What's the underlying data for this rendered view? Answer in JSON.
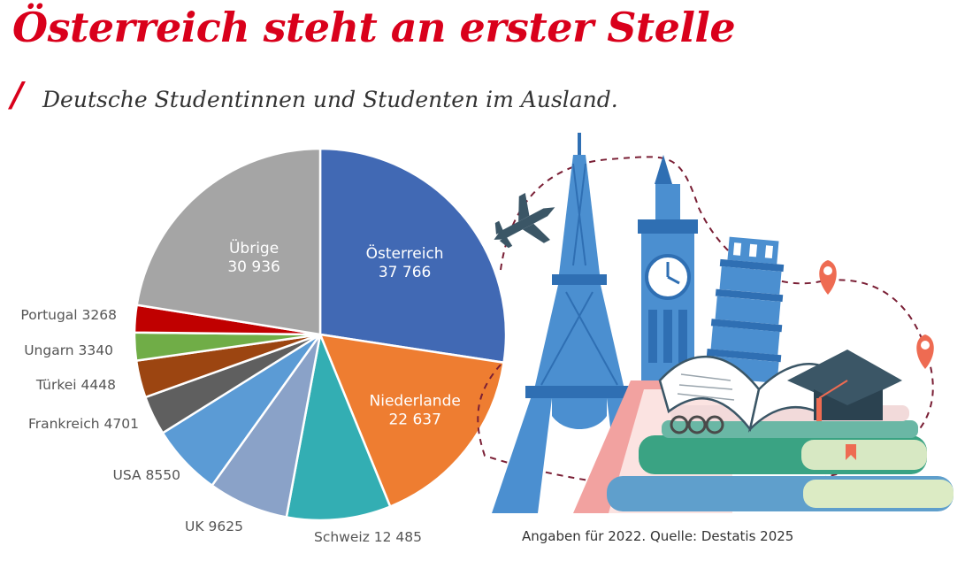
{
  "chart_data": {
    "type": "pie",
    "title": "Österreich steht an erster Stelle",
    "subtitle": "Deutsche Studentinnen und Studenten im Ausland.",
    "slices": [
      {
        "name": "Österreich",
        "value": 37766,
        "value_label": "37 766",
        "color": "#4169b4",
        "label_position": "inside"
      },
      {
        "name": "Niederlande",
        "value": 22637,
        "value_label": "22 637",
        "color": "#ee7d31",
        "label_position": "inside"
      },
      {
        "name": "Schweiz",
        "value": 12485,
        "value_label": "12 485",
        "color": "#33aeb3",
        "label_position": "outside"
      },
      {
        "name": "UK",
        "value": 9625,
        "value_label": "9625",
        "color": "#8aa2c8",
        "label_position": "outside"
      },
      {
        "name": "USA",
        "value": 8550,
        "value_label": "8550",
        "color": "#5b9bd5",
        "label_position": "outside"
      },
      {
        "name": "Frankreich",
        "value": 4701,
        "value_label": "4701",
        "color": "#5f5f5f",
        "label_position": "outside"
      },
      {
        "name": "Türkei",
        "value": 4448,
        "value_label": "4448",
        "color": "#9c4511",
        "label_position": "outside"
      },
      {
        "name": "Ungarn",
        "value": 3340,
        "value_label": "3340",
        "color": "#70ad47",
        "label_position": "outside"
      },
      {
        "name": "Portugal",
        "value": 3268,
        "value_label": "3268",
        "color": "#c00000",
        "label_position": "outside"
      },
      {
        "name": "Übrige",
        "value": 30936,
        "value_label": "30 936",
        "color": "#a5a5a5",
        "label_position": "inside"
      }
    ],
    "start": "12 o'clock",
    "direction": "clockwise",
    "legend": "none"
  },
  "source": "Angaben für 2022. Quelle: Destatis 2025",
  "colors": {
    "title": "#d9001b",
    "text": "#333333",
    "label": "#555555"
  },
  "illustration": {
    "icons": [
      "airplane-icon",
      "eiffel-tower-icon",
      "big-ben-icon",
      "leaning-tower-icon",
      "location-pin-icon",
      "book-stack-icon",
      "open-book-icon",
      "graduation-cap-icon"
    ]
  }
}
